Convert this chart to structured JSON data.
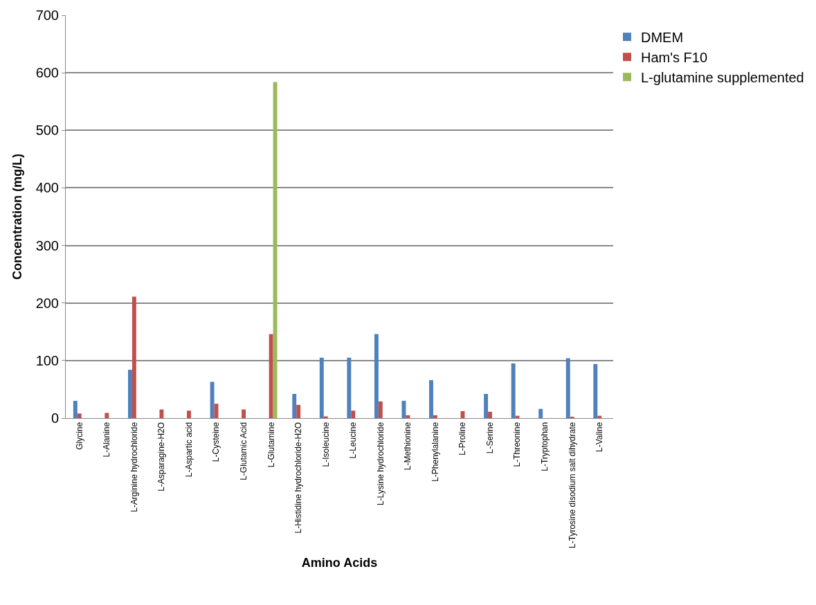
{
  "chart_data": {
    "type": "bar",
    "xlabel": "Amino Acids",
    "ylabel": "Concentration (mg/L)",
    "categories": [
      "Glycine",
      "L-Alanine",
      "L-Arginine hydrochloride",
      "L-Asparagine-H2O",
      "L-Aspartic acid",
      "L-Cysteine",
      "L-Glutamic Acid",
      "L-Glutamine",
      "L-Histidine hydrochloride-H2O",
      "L-Isoleucine",
      "L-Leucine",
      "L-Lysine hydrochloride",
      "L-Methionine",
      "L-Phenylalanine",
      "L-Proline",
      "L-Serine",
      "L-Threonine",
      "L-Tryptophan",
      "L-Tyrosine disodium salt dihydrate",
      "L-Valine"
    ],
    "series": [
      {
        "name": "DMEM",
        "color": "#4f81bd",
        "values": [
          30,
          0,
          84,
          0,
          0,
          63,
          0,
          0,
          42,
          105,
          105,
          146,
          30,
          66,
          0,
          42,
          95,
          16,
          104,
          94
        ]
      },
      {
        "name": "Ham's F10",
        "color": "#c0504d",
        "values": [
          8,
          9,
          211,
          15,
          13,
          25,
          15,
          146,
          23,
          3,
          13,
          29,
          5,
          5,
          12,
          11,
          4,
          null,
          2,
          4
        ]
      },
      {
        "name": "L-glutamine supplemented",
        "color": "#9bbb59",
        "values": [
          0,
          0,
          0,
          0,
          0,
          0,
          0,
          584,
          0,
          0,
          0,
          0,
          0,
          0,
          0,
          0,
          0,
          0,
          0,
          0
        ]
      }
    ],
    "ylim": [
      0,
      700
    ],
    "yticks": [
      0,
      100,
      200,
      300,
      400,
      500,
      600,
      700
    ],
    "grid": "y",
    "legend": "top right"
  }
}
